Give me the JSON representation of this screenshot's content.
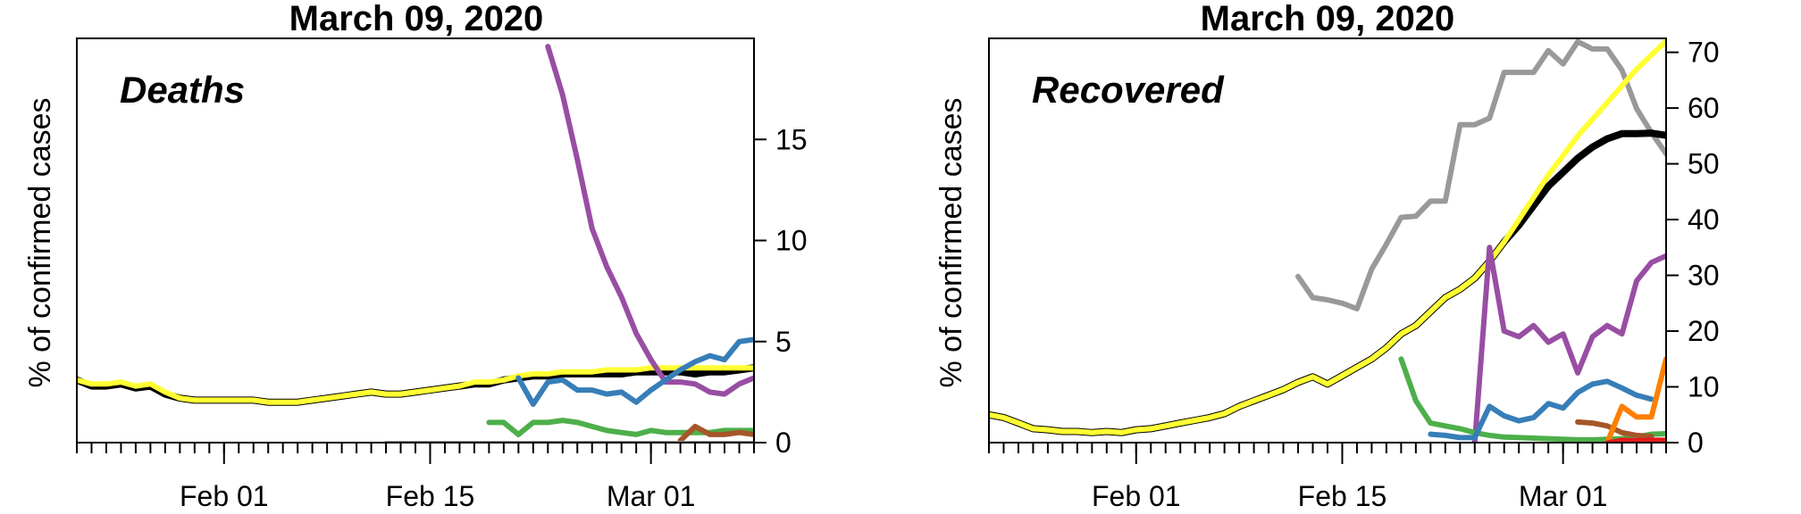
{
  "chart_data": [
    {
      "type": "line",
      "title": "March 09, 2020",
      "panel_label": "Deaths",
      "ylabel": "% of confirmed cases",
      "xlim": [
        0,
        46
      ],
      "ylim": [
        0,
        20
      ],
      "yticks": [
        0,
        5,
        10,
        15
      ],
      "xticks": [
        {
          "x": 10,
          "label": "Feb 01"
        },
        {
          "x": 24,
          "label": "Feb 15"
        },
        {
          "x": 39,
          "label": "Mar 01"
        }
      ],
      "series": [
        {
          "name": "black",
          "color": "#000000",
          "width": 8,
          "x_start": 0,
          "values": [
            3.1,
            2.8,
            2.8,
            2.9,
            2.7,
            2.8,
            2.4,
            2.2,
            2.1,
            2.1,
            2.1,
            2.1,
            2.1,
            2.0,
            2.0,
            2.0,
            2.1,
            2.2,
            2.3,
            2.4,
            2.5,
            2.4,
            2.4,
            2.5,
            2.6,
            2.7,
            2.8,
            2.9,
            2.9,
            3.1,
            3.2,
            3.3,
            3.3,
            3.4,
            3.4,
            3.4,
            3.4,
            3.4,
            3.5,
            3.5,
            3.5,
            3.5,
            3.4,
            3.5,
            3.5,
            3.6,
            3.7
          ]
        },
        {
          "name": "yellow",
          "color": "#ffff33",
          "width": 6,
          "x_start": 0,
          "values": [
            3.1,
            2.9,
            2.9,
            3.0,
            2.8,
            2.9,
            2.5,
            2.2,
            2.1,
            2.1,
            2.1,
            2.1,
            2.1,
            2.0,
            2.0,
            2.0,
            2.1,
            2.2,
            2.3,
            2.4,
            2.5,
            2.4,
            2.4,
            2.5,
            2.6,
            2.7,
            2.8,
            3.0,
            3.0,
            3.1,
            3.3,
            3.4,
            3.4,
            3.5,
            3.5,
            3.5,
            3.6,
            3.6,
            3.6,
            3.7,
            3.7,
            3.7,
            3.7,
            3.7,
            3.7,
            3.7,
            3.7
          ]
        },
        {
          "name": "purple",
          "color": "#984ea3",
          "width": 6,
          "x_start": 32,
          "values": [
            19.6,
            17.2,
            14.0,
            10.6,
            8.7,
            7.2,
            5.4,
            4.1,
            3.0,
            3.0,
            2.9,
            2.5,
            2.4,
            2.9,
            3.2
          ]
        },
        {
          "name": "blue",
          "color": "#377eb8",
          "width": 6,
          "x_start": 30,
          "values": [
            3.2,
            1.9,
            3.0,
            3.1,
            2.6,
            2.6,
            2.4,
            2.5,
            2.0,
            2.6,
            3.1,
            3.6,
            4.0,
            4.3,
            4.1,
            5.0,
            5.1
          ]
        },
        {
          "name": "green",
          "color": "#4daf4a",
          "width": 6,
          "x_start": 28,
          "values": [
            1.0,
            1.0,
            0.4,
            1.0,
            1.0,
            1.1,
            1.0,
            0.8,
            0.6,
            0.5,
            0.4,
            0.6,
            0.5,
            0.5,
            0.5,
            0.5,
            0.6,
            0.6,
            0.6
          ]
        },
        {
          "name": "brown",
          "color": "#a65628",
          "width": 6,
          "x_start": 41,
          "values": [
            0.1,
            0.8,
            0.4,
            0.4,
            0.5,
            0.4
          ]
        },
        {
          "name": "grey",
          "color": "#999999",
          "width": 4,
          "x_start": 21,
          "values": [
            0.0,
            0.0,
            0.0,
            0.0,
            0.0,
            0.0,
            0.0,
            0.0,
            0.0,
            0.0,
            0.0,
            0.0,
            0.0,
            0.0,
            0.0,
            0.0,
            0.0,
            0.0,
            0.0,
            0.0,
            0.0,
            0.0,
            0.0,
            0.0,
            0.0,
            0.0
          ]
        }
      ]
    },
    {
      "type": "line",
      "title": "March 09, 2020",
      "panel_label": "Recovered",
      "ylabel": "% of confirmed cases",
      "xlim": [
        0,
        46
      ],
      "ylim": [
        0,
        72.5
      ],
      "yticks": [
        0,
        10,
        20,
        30,
        40,
        50,
        60,
        70
      ],
      "xticks": [
        {
          "x": 10,
          "label": "Feb 01"
        },
        {
          "x": 24,
          "label": "Feb 15"
        },
        {
          "x": 39,
          "label": "Mar 01"
        }
      ],
      "series": [
        {
          "name": "grey",
          "color": "#999999",
          "width": 6,
          "x_start": 21,
          "values": [
            29.8,
            26.0,
            25.6,
            25.0,
            24.0,
            31.1,
            35.6,
            40.4,
            40.6,
            43.3,
            43.3,
            57.0,
            57.0,
            58.2,
            66.4,
            66.4,
            66.4,
            70.3,
            67.9,
            71.9,
            70.6,
            70.6,
            66.8,
            59.9,
            55.6,
            51.8,
            51.8
          ]
        },
        {
          "name": "black",
          "color": "#000000",
          "width": 8,
          "x_start": 0,
          "values": [
            5.0,
            4.5,
            3.5,
            2.5,
            2.3,
            2.0,
            2.0,
            1.8,
            2.0,
            1.8,
            2.3,
            2.5,
            3.0,
            3.5,
            4.0,
            4.5,
            5.2,
            6.5,
            7.5,
            8.5,
            9.5,
            10.8,
            11.8,
            10.5,
            12.0,
            13.5,
            15.0,
            17.0,
            19.5,
            21.0,
            23.5,
            26.0,
            27.5,
            29.5,
            32.5,
            36.0,
            39.0,
            42.5,
            46.0,
            48.5,
            51.0,
            53.0,
            54.5,
            55.4,
            55.4,
            55.5,
            55.1
          ]
        },
        {
          "name": "yellow",
          "color": "#ffff33",
          "width": 6,
          "x_start": 0,
          "values": [
            5.0,
            4.5,
            3.5,
            2.5,
            2.3,
            2.0,
            2.0,
            1.8,
            2.0,
            1.8,
            2.3,
            2.5,
            3.0,
            3.5,
            4.0,
            4.5,
            5.2,
            6.5,
            7.5,
            8.5,
            9.5,
            10.8,
            11.8,
            10.5,
            12.0,
            13.5,
            15.0,
            17.0,
            19.5,
            21.0,
            23.5,
            26.0,
            27.5,
            29.5,
            32.5,
            36.0,
            40.0,
            44.0,
            48.0,
            51.5,
            55.0,
            58.0,
            61.0,
            64.0,
            67.0,
            69.5,
            72.0
          ]
        },
        {
          "name": "purple",
          "color": "#984ea3",
          "width": 6,
          "x_start": 33,
          "values": [
            0.0,
            35.0,
            20.0,
            19.0,
            21.0,
            18.0,
            19.5,
            12.5,
            19.0,
            21.0,
            19.5,
            29.0,
            32.3,
            33.5
          ]
        },
        {
          "name": "green",
          "color": "#4daf4a",
          "width": 6,
          "x_start": 28,
          "values": [
            15.0,
            7.5,
            3.5,
            3.0,
            2.5,
            1.8,
            1.3,
            1.0,
            0.9,
            0.8,
            0.7,
            0.6,
            0.5,
            0.5,
            0.6,
            0.7,
            1.0,
            1.5,
            1.6
          ]
        },
        {
          "name": "blue",
          "color": "#377eb8",
          "width": 6,
          "x_start": 30,
          "values": [
            1.5,
            1.3,
            0.9,
            0.9,
            6.5,
            4.8,
            3.9,
            4.5,
            7.0,
            6.2,
            9.0,
            10.5,
            11.0,
            9.8,
            8.5,
            7.8
          ]
        },
        {
          "name": "brown",
          "color": "#a65628",
          "width": 6,
          "x_start": 40,
          "values": [
            3.7,
            3.5,
            3.0,
            1.8,
            1.3,
            1.1
          ]
        },
        {
          "name": "orange",
          "color": "#ff7f00",
          "width": 6,
          "x_start": 42,
          "values": [
            0.0,
            6.5,
            4.6,
            4.6,
            15.0
          ]
        },
        {
          "name": "red",
          "color": "#e41a1c",
          "width": 5,
          "x_start": 42,
          "values": [
            0.0,
            0.5,
            0.4,
            0.5,
            0.5
          ]
        }
      ]
    }
  ]
}
